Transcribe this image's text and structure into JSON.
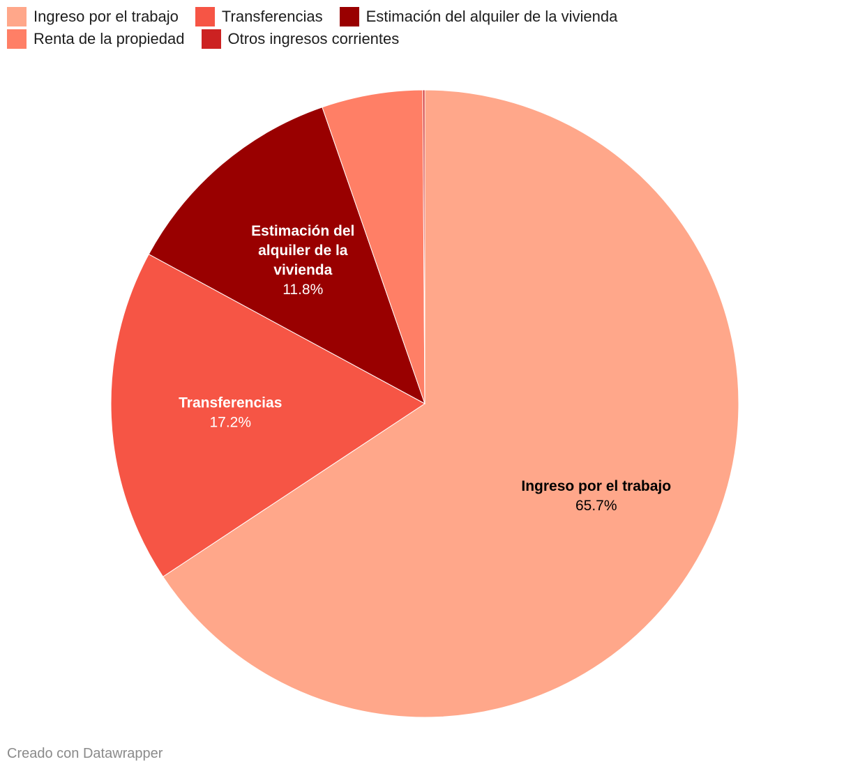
{
  "legend": [
    {
      "label": "Ingreso por el trabajo",
      "color": "#ffa78a"
    },
    {
      "label": "Transferencias",
      "color": "#f65545"
    },
    {
      "label": "Estimación del alquiler de la vivienda",
      "color": "#990000"
    },
    {
      "label": "Renta de la propiedad",
      "color": "#ff7f66"
    },
    {
      "label": "Otros ingresos corrientes",
      "color": "#cc2222"
    }
  ],
  "chart_data": {
    "type": "pie",
    "title": "",
    "categories": [
      "Ingreso por el trabajo",
      "Transferencias",
      "Estimación del alquiler de la vivienda",
      "Renta de la propiedad",
      "Otros ingresos corrientes"
    ],
    "values": [
      65.7,
      17.2,
      11.8,
      5.2,
      0.1
    ],
    "colors": [
      "#ffa78a",
      "#f65545",
      "#990000",
      "#ff7f66",
      "#cc2222"
    ],
    "value_suffix": "%",
    "slice_labels": [
      {
        "name_lines": [
          "Ingreso por el trabajo"
        ],
        "value": "65.7%",
        "text_color": "#000000"
      },
      {
        "name_lines": [
          "Transferencias"
        ],
        "value": "17.2%",
        "text_color": "#ffffff"
      },
      {
        "name_lines": [
          "Estimación del",
          "alquiler de la",
          "vivienda"
        ],
        "value": "11.8%",
        "text_color": "#ffffff"
      },
      null,
      null
    ],
    "legend_position": "top-left"
  },
  "footer": {
    "credit": "Creado con Datawrapper"
  }
}
